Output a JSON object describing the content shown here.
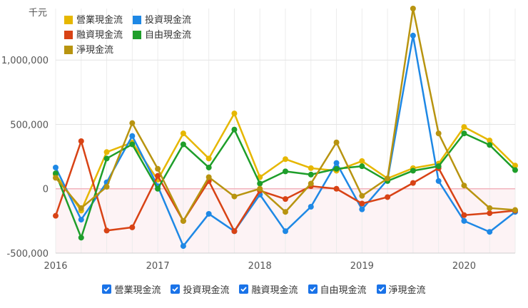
{
  "chart_data": {
    "type": "line",
    "unit_label": "千元",
    "x": [
      "2016Q1",
      "2016Q2",
      "2016Q3",
      "2016Q4",
      "2017Q1",
      "2017Q2",
      "2017Q3",
      "2017Q4",
      "2018Q1",
      "2018Q2",
      "2018Q3",
      "2018Q4",
      "2019Q1",
      "2019Q2",
      "2019Q3",
      "2019Q4",
      "2020Q1",
      "2020Q2",
      "2020Q3"
    ],
    "x_ticks": [
      "2016",
      "2017",
      "2018",
      "2019",
      "2020"
    ],
    "y_ticks": [
      "1,000,000",
      "500,000",
      "0",
      "-500,000"
    ],
    "ylim": [
      -500000,
      1400000
    ],
    "legend_position": "top-left",
    "series": [
      {
        "name": "營業現金流",
        "color": "#e6b700",
        "values": [
          110000,
          -170000,
          285000,
          360000,
          70000,
          430000,
          235000,
          585000,
          90000,
          230000,
          160000,
          140000,
          215000,
          80000,
          160000,
          195000,
          480000,
          375000,
          180000
        ]
      },
      {
        "name": "投資現金流",
        "color": "#1e88e5",
        "values": [
          165000,
          -240000,
          50000,
          410000,
          20000,
          -445000,
          -195000,
          -330000,
          -45000,
          -330000,
          -140000,
          200000,
          -160000,
          70000,
          1190000,
          60000,
          -250000,
          -335000,
          -180000
        ]
      },
      {
        "name": "融資現金流",
        "color": "#d84315",
        "values": [
          -210000,
          370000,
          -325000,
          -300000,
          100000,
          -250000,
          60000,
          -330000,
          -15000,
          -80000,
          20000,
          0,
          -115000,
          -65000,
          45000,
          160000,
          -205000,
          -190000,
          -170000
        ]
      },
      {
        "name": "自由現金流",
        "color": "#1e9e2a",
        "values": [
          120000,
          -380000,
          235000,
          345000,
          0,
          345000,
          165000,
          460000,
          40000,
          135000,
          110000,
          155000,
          175000,
          60000,
          140000,
          175000,
          430000,
          340000,
          145000
        ]
      },
      {
        "name": "淨現金流",
        "color": "#b89410",
        "values": [
          85000,
          -150000,
          15000,
          510000,
          155000,
          -250000,
          90000,
          -60000,
          0,
          -180000,
          40000,
          360000,
          -55000,
          80000,
          1400000,
          430000,
          25000,
          -150000,
          -165000
        ]
      }
    ]
  }
}
